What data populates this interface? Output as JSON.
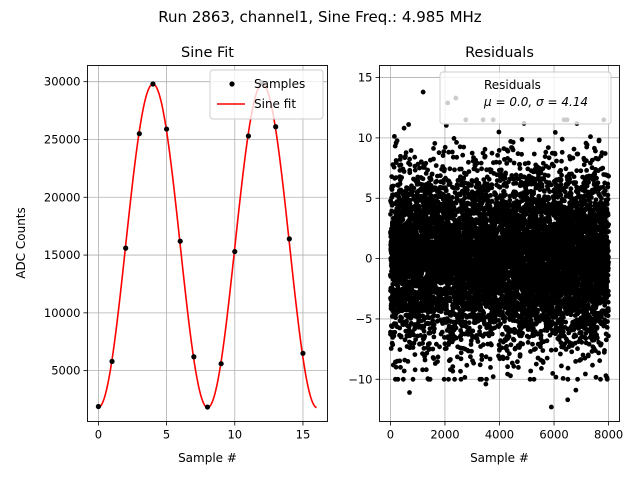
{
  "figure_title": "Run 2863, channel1, Sine Freq.: 4.985 MHz",
  "chart_data": [
    {
      "type": "scatter",
      "title": "Sine Fit",
      "xlabel": "Sample #",
      "ylabel": "ADC Counts",
      "xlim": [
        -0.8,
        16.8
      ],
      "ylim": [
        600,
        31400
      ],
      "xticks": [
        0,
        5,
        10,
        15
      ],
      "xtick_labels": [
        "0",
        "5",
        "10",
        "15"
      ],
      "yticks": [
        5000,
        10000,
        15000,
        20000,
        25000,
        30000
      ],
      "ytick_labels": [
        "5000",
        "10000",
        "15000",
        "20000",
        "25000",
        "30000"
      ],
      "grid": true,
      "legend": {
        "position": "upper-right",
        "entries": [
          "Samples",
          "Sine fit"
        ]
      },
      "series": [
        {
          "name": "Samples",
          "kind": "points",
          "color": "#000000",
          "x": [
            0,
            1,
            2,
            3,
            4,
            5,
            6,
            7,
            8,
            9,
            10,
            11,
            12,
            13,
            14,
            15
          ],
          "y": [
            1900,
            5800,
            15600,
            25500,
            29800,
            25900,
            16200,
            6200,
            1850,
            5600,
            15300,
            25300,
            29900,
            26100,
            16400,
            6500
          ]
        },
        {
          "name": "Sine fit",
          "kind": "line",
          "color": "#ff0000",
          "x_range": [
            0,
            16
          ],
          "amplitude": 14000,
          "offset": 15800,
          "period_samples": 8.02,
          "peak_sample": 4.0
        }
      ]
    },
    {
      "type": "scatter",
      "title": "Residuals",
      "xlabel": "Sample #",
      "ylabel": "",
      "xlim": [
        -400,
        8400
      ],
      "ylim": [
        -13.5,
        16
      ],
      "xticks": [
        0,
        2000,
        4000,
        6000,
        8000
      ],
      "xtick_labels": [
        "0",
        "2000",
        "4000",
        "6000",
        "8000"
      ],
      "yticks": [
        -10,
        -5,
        0,
        5,
        10,
        15
      ],
      "ytick_labels": [
        "−10",
        "−5",
        "0",
        "5",
        "10",
        "15"
      ],
      "grid": true,
      "legend": {
        "position": "upper-right",
        "entries": [
          "Residuals",
          "μ = 0.0, σ = 4.14"
        ]
      },
      "series": [
        {
          "name": "Residuals",
          "kind": "points",
          "color": "#000000",
          "n_points": 8000,
          "x_range": [
            0,
            8000
          ],
          "mean": 0.0,
          "sigma": 4.14,
          "outliers": [
            {
              "x": 1200,
              "y": 13.8
            },
            {
              "x": 2100,
              "y": 12.9
            },
            {
              "x": 2400,
              "y": 13.3
            },
            {
              "x": 5900,
              "y": -12.3
            },
            {
              "x": 700,
              "y": -11.1
            },
            {
              "x": 6500,
              "y": -11.7
            },
            {
              "x": 6800,
              "y": -10.9
            },
            {
              "x": 7950,
              "y": -10.0
            },
            {
              "x": 4900,
              "y": 11.2
            },
            {
              "x": 3500,
              "y": -10.4
            }
          ]
        }
      ]
    }
  ]
}
